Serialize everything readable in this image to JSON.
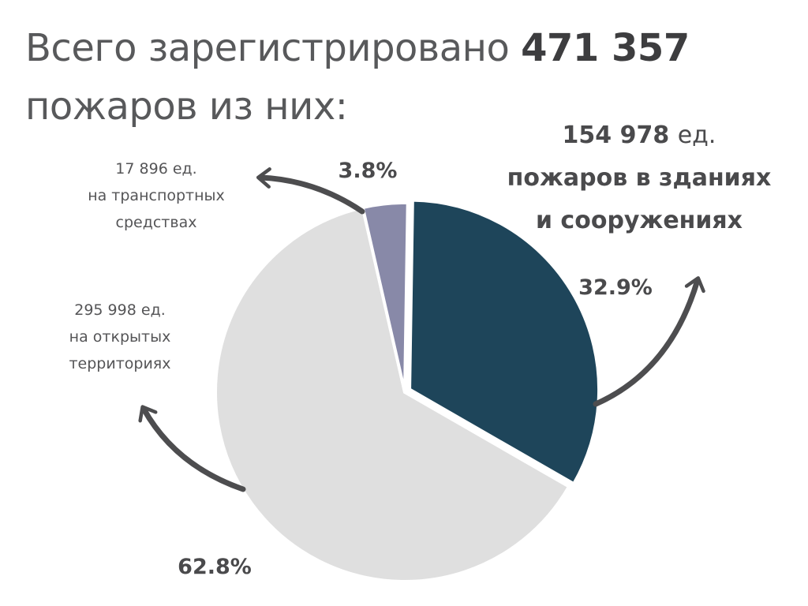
{
  "header": {
    "title_prefix": "Всего зарегистрировано",
    "title_total": "471 357",
    "title_suffix": "пожаров из них:"
  },
  "chart_data": {
    "type": "pie",
    "total": 471357,
    "slices": [
      {
        "key": "buildings",
        "value": 154978,
        "percent": 32.9,
        "percent_label": "32.9%",
        "color": "#1e455a",
        "count_label": "154 978",
        "unit_label": "ед.",
        "desc_lines": [
          "пожаров в зданиях",
          "и сооружениях"
        ],
        "exploded": true
      },
      {
        "key": "open",
        "value": 295998,
        "percent": 62.8,
        "percent_label": "62.8%",
        "color": "#dfdfdf",
        "count_label": "295 998",
        "unit_label": "ед.",
        "desc_lines": [
          "на открытых",
          "территориях"
        ]
      },
      {
        "key": "transport",
        "value": 17896,
        "percent": 3.8,
        "percent_label": "3.8%",
        "color": "#8889a8",
        "count_label": "17 896",
        "unit_label": "ед.",
        "desc_lines": [
          "на транспортных",
          "средствах"
        ]
      }
    ]
  },
  "colors": {
    "text": "#58595b",
    "arrow": "#4d4d4f",
    "percent_text": "#4a4a4c"
  }
}
